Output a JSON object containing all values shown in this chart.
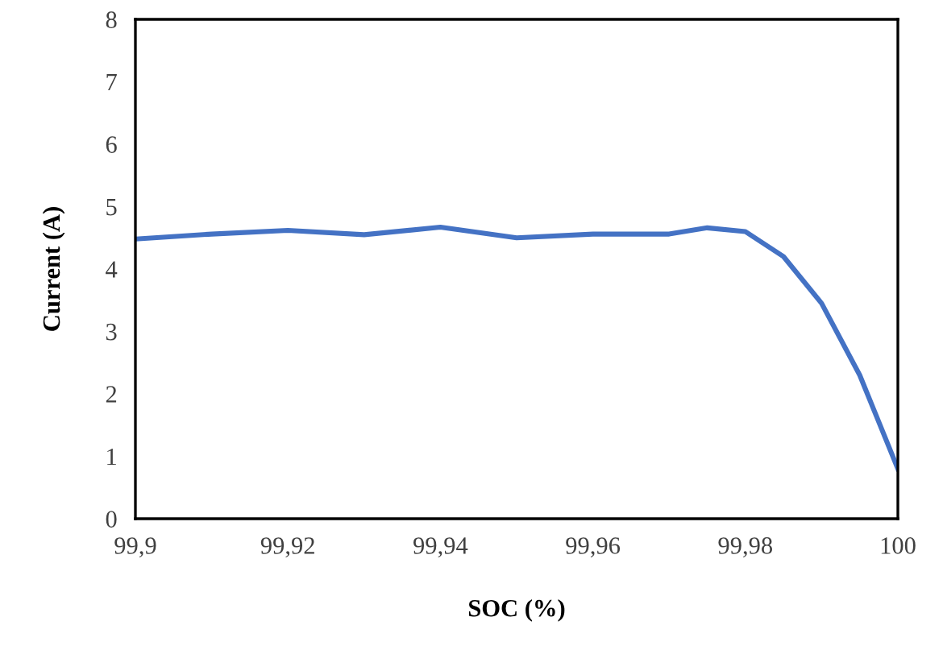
{
  "chart_data": {
    "type": "line",
    "xlabel": "SOC (%)",
    "ylabel": "Current (A)",
    "x": [
      99.9,
      99.91,
      99.92,
      99.93,
      99.94,
      99.95,
      99.96,
      99.97,
      99.975,
      99.98,
      99.985,
      99.99,
      99.995,
      100
    ],
    "series": [
      {
        "color": "#4472c4",
        "values": [
          4.48,
          4.56,
          4.62,
          4.55,
          4.67,
          4.5,
          4.56,
          4.56,
          4.66,
          4.6,
          4.2,
          3.45,
          2.3,
          0.8
        ]
      }
    ],
    "xlim": [
      99.9,
      100
    ],
    "ylim": [
      0,
      8
    ],
    "xticks": [
      {
        "value": 99.9,
        "label": "99,9"
      },
      {
        "value": 99.92,
        "label": "99,92"
      },
      {
        "value": 99.94,
        "label": "99,94"
      },
      {
        "value": 99.96,
        "label": "99,96"
      },
      {
        "value": 99.98,
        "label": "99,98"
      },
      {
        "value": 100,
        "label": "100"
      }
    ],
    "yticks": [
      0,
      1,
      2,
      3,
      4,
      5,
      6,
      7,
      8
    ],
    "grid": false,
    "legend": false,
    "marker": "none",
    "line_style": "solid"
  }
}
